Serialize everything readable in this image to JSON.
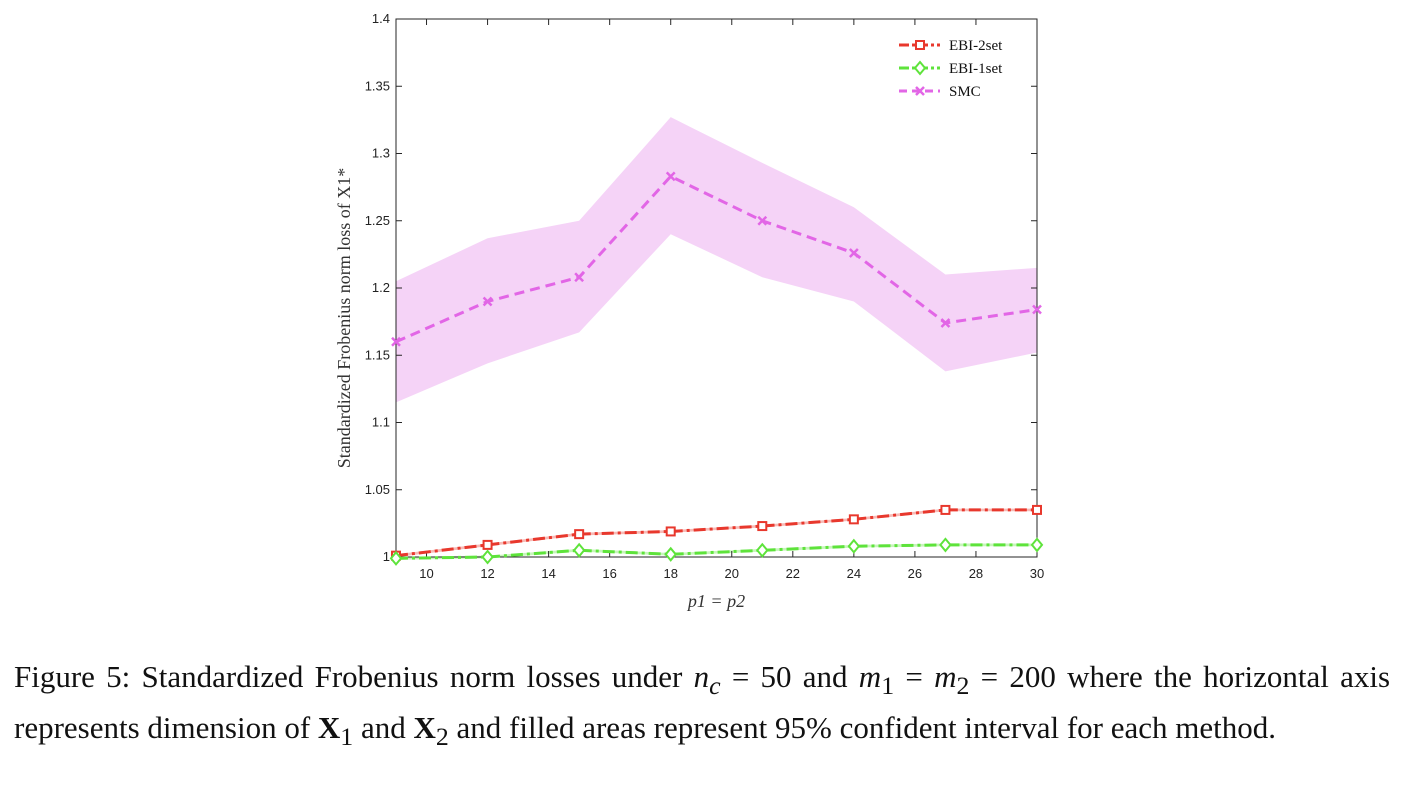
{
  "chart_data": {
    "type": "line",
    "x": [
      9,
      12,
      15,
      18,
      21,
      24,
      27,
      30
    ],
    "xlim": [
      9,
      30
    ],
    "ylim": [
      1,
      1.4
    ],
    "xticks": [
      "10",
      "12",
      "14",
      "16",
      "18",
      "20",
      "22",
      "24",
      "26",
      "28",
      "30"
    ],
    "yticks": [
      "1",
      "1.05",
      "1.1",
      "1.15",
      "1.2",
      "1.25",
      "1.3",
      "1.35",
      "1.4"
    ],
    "xlabel": "p1 = p2",
    "ylabel": "Standardized Frobenius norm loss of X1*",
    "grid": false,
    "legend_position": "top-right",
    "series": [
      {
        "name": "EBI-2set",
        "color": "#e8382d",
        "marker": "square",
        "values": [
          1.001,
          1.009,
          1.017,
          1.019,
          1.023,
          1.028,
          1.035,
          1.035
        ],
        "lower": [
          1.0,
          1.008,
          1.016,
          1.018,
          1.022,
          1.027,
          1.034,
          1.034
        ],
        "upper": [
          1.002,
          1.01,
          1.018,
          1.02,
          1.024,
          1.029,
          1.036,
          1.036
        ]
      },
      {
        "name": "EBI-1set",
        "color": "#5ee33b",
        "marker": "diamond",
        "values": [
          0.999,
          1.0,
          1.005,
          1.002,
          1.005,
          1.008,
          1.009,
          1.009
        ],
        "lower": [
          0.998,
          0.999,
          1.004,
          1.001,
          1.004,
          1.007,
          1.008,
          1.008
        ],
        "upper": [
          1.0,
          1.001,
          1.006,
          1.003,
          1.006,
          1.009,
          1.01,
          1.01
        ]
      },
      {
        "name": "SMC",
        "color": "#e266e6",
        "fill": "#f5d3f7",
        "marker": "x",
        "values": [
          1.16,
          1.19,
          1.208,
          1.283,
          1.25,
          1.226,
          1.174,
          1.184
        ],
        "lower": [
          1.115,
          1.144,
          1.167,
          1.24,
          1.208,
          1.19,
          1.138,
          1.152
        ],
        "upper": [
          1.205,
          1.237,
          1.25,
          1.327,
          1.293,
          1.26,
          1.21,
          1.215
        ]
      }
    ]
  },
  "caption": {
    "part1": "Figure 5:  Standardized Frobenius norm losses under ",
    "nc": "n",
    "nc_sub": "c",
    "part2": " = 50 and ",
    "m1": "m",
    "m1_sub": "1",
    "part3": " = ",
    "m2": "m",
    "m2_sub": "2",
    "part4": " = 200 where the horizontal axis represents dimension of ",
    "x1": "X",
    "x1_sub": "1",
    "part5": " and ",
    "x2": "X",
    "x2_sub": "2",
    "part6": " and filled areas represent 95% confident interval for each method."
  }
}
